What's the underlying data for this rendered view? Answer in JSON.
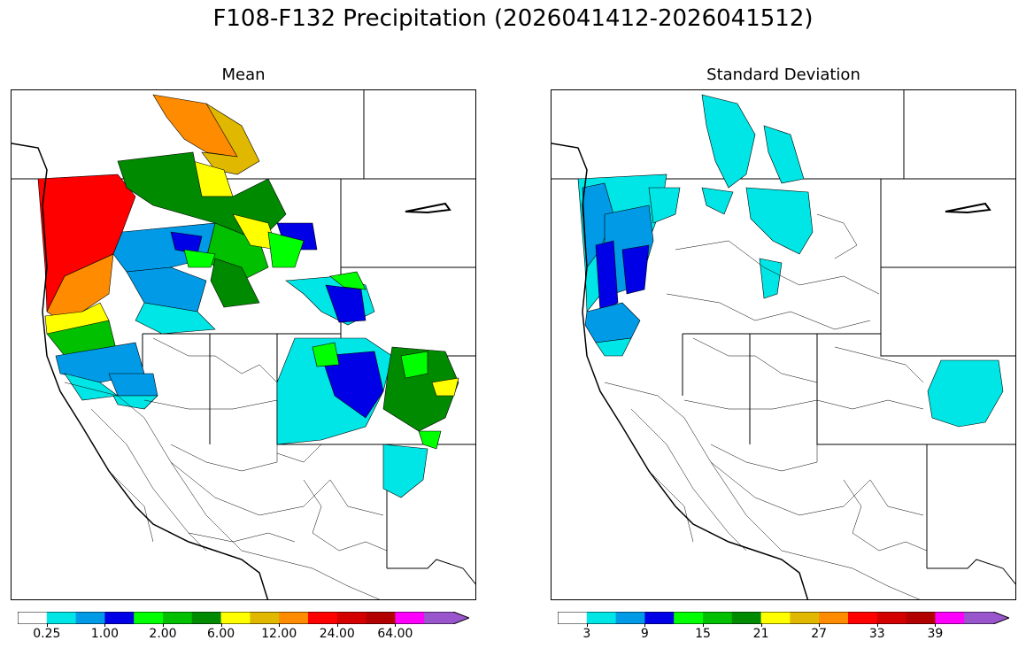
{
  "title": "F108-F132 Precipitation (2026041412-2026041512)",
  "panels": [
    {
      "id": "mean",
      "title": "Mean",
      "colorbar": {
        "colors": [
          "#ffffff",
          "#00e5e5",
          "#009ae6",
          "#0000e6",
          "#00ff00",
          "#00c000",
          "#008a00",
          "#ffff00",
          "#e0b800",
          "#ff8c00",
          "#ff0000",
          "#d40000",
          "#b20000",
          "#ff00ff",
          "#9955cc"
        ],
        "ticks": [
          "0.25",
          "1.00",
          "2.00",
          "6.00",
          "12.00",
          "24.00",
          "64.00"
        ],
        "extend": "max"
      }
    },
    {
      "id": "stddev",
      "title": "Standard Deviation",
      "colorbar": {
        "colors": [
          "#ffffff",
          "#00e5e5",
          "#009ae6",
          "#0000e6",
          "#00ff00",
          "#00c000",
          "#008a00",
          "#ffff00",
          "#e0b800",
          "#ff8c00",
          "#ff0000",
          "#d40000",
          "#b20000",
          "#ff00ff",
          "#9955cc"
        ],
        "ticks": [
          "3",
          "9",
          "15",
          "21",
          "27",
          "33",
          "39"
        ],
        "extend": "max"
      }
    }
  ],
  "legend_units": "",
  "region": "Western United States river basins"
}
